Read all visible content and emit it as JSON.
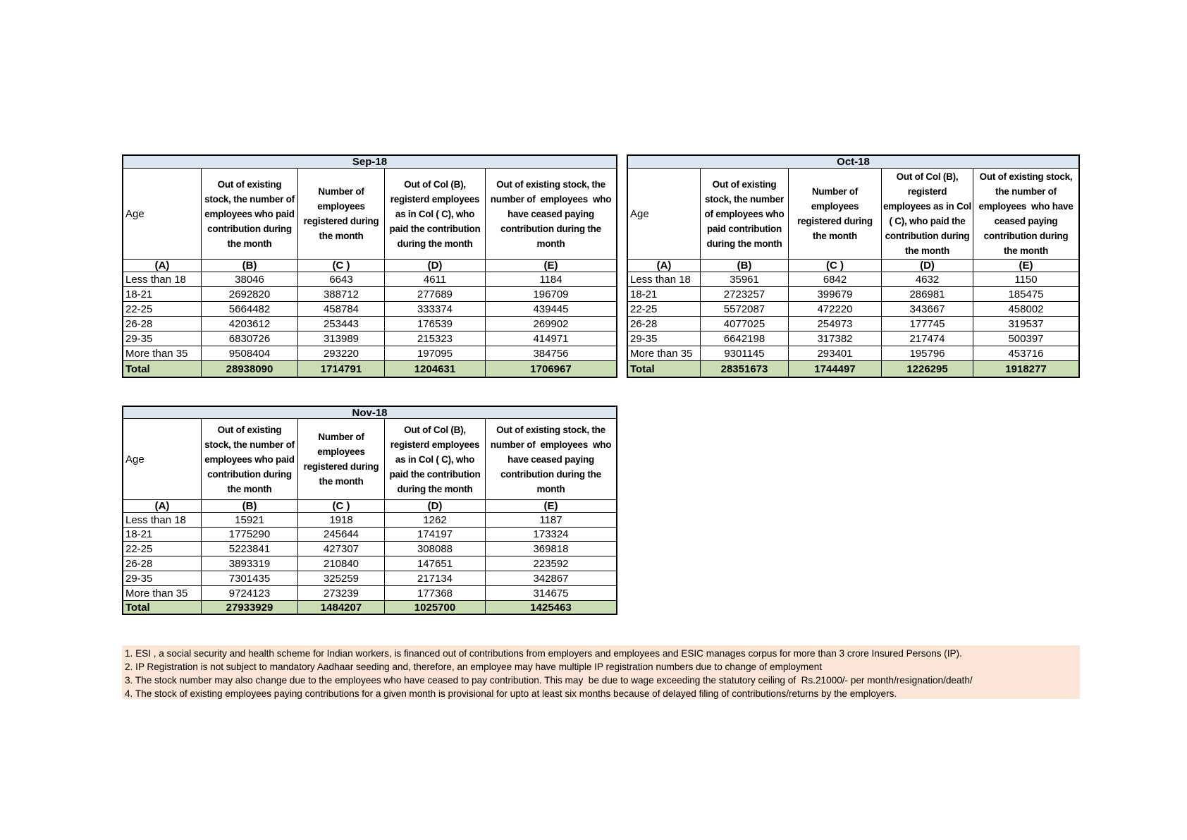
{
  "colors": {
    "month_header_bg": "#DCE6F1",
    "total_row_bg": "#C9DCB2",
    "footnote_bg": "#FBE5D6",
    "border": "#000000"
  },
  "column_letters": [
    "(A)",
    "(B)",
    "(C )",
    "(D)",
    "(E)"
  ],
  "tables": [
    {
      "id": "sep",
      "month": "Sep-18",
      "col_headers": [
        "Age",
        "Out of existing\nstock, the number of\nemployees who paid\ncontribution during\nthe month",
        "Number of\nemployees\nregistered during\nthe month",
        "Out of Col (B),\nregisterd employees\nas in Col ( C), who\npaid the contribution\nduring the month",
        "Out of existing stock, the\nnumber of  employees  who\nhave ceased paying\ncontribution during the\nmonth"
      ],
      "rows": [
        {
          "age": "Less than 18",
          "values": [
            "38046",
            "6643",
            "4611",
            "1184"
          ]
        },
        {
          "age": "18-21",
          "values": [
            "2692820",
            "388712",
            "277689",
            "196709"
          ]
        },
        {
          "age": "22-25",
          "values": [
            "5664482",
            "458784",
            "333374",
            "439445"
          ]
        },
        {
          "age": "26-28",
          "values": [
            "4203612",
            "253443",
            "176539",
            "269902"
          ]
        },
        {
          "age": "29-35",
          "values": [
            "6830726",
            "313989",
            "215323",
            "414971"
          ]
        },
        {
          "age": "More than 35",
          "values": [
            "9508404",
            "293220",
            "197095",
            "384756"
          ]
        }
      ],
      "total": {
        "label": "Total",
        "values": [
          "28938090",
          "1714791",
          "1204631",
          "1706967"
        ]
      }
    },
    {
      "id": "oct",
      "month": "Oct-18",
      "col_headers": [
        "Age",
        "Out of existing\nstock, the number\nof employees who\npaid contribution\nduring the month",
        "Number of\nemployees\nregistered during\nthe month",
        "Out of Col (B),\nregisterd\nemployees as in Col\n( C), who paid the\ncontribution during\nthe month",
        "Out of existing stock,\nthe number of\nemployees  who have\nceased paying\ncontribution during\nthe month"
      ],
      "rows": [
        {
          "age": "Less than 18",
          "values": [
            "35961",
            "6842",
            "4632",
            "1150"
          ]
        },
        {
          "age": "18-21",
          "values": [
            "2723257",
            "399679",
            "286981",
            "185475"
          ]
        },
        {
          "age": "22-25",
          "values": [
            "5572087",
            "472220",
            "343667",
            "458002"
          ]
        },
        {
          "age": "26-28",
          "values": [
            "4077025",
            "254973",
            "177745",
            "319537"
          ]
        },
        {
          "age": "29-35",
          "values": [
            "6642198",
            "317382",
            "217474",
            "500397"
          ]
        },
        {
          "age": "More than 35",
          "values": [
            "9301145",
            "293401",
            "195796",
            "453716"
          ]
        }
      ],
      "total": {
        "label": "Total",
        "values": [
          "28351673",
          "1744497",
          "1226295",
          "1918277"
        ]
      }
    },
    {
      "id": "nov",
      "month": "Nov-18",
      "col_headers": [
        "Age",
        "Out of existing\nstock, the number of\nemployees who paid\ncontribution during\nthe month",
        "Number of\nemployees\nregistered during\nthe month",
        "Out of Col (B),\nregisterd employees\nas in Col ( C), who\npaid the contribution\nduring the month",
        "Out of existing stock, the\nnumber of  employees  who\nhave ceased paying\ncontribution during the\nmonth"
      ],
      "rows": [
        {
          "age": "Less than 18",
          "values": [
            "15921",
            "1918",
            "1262",
            "1187"
          ]
        },
        {
          "age": "18-21",
          "values": [
            "1775290",
            "245644",
            "174197",
            "173324"
          ]
        },
        {
          "age": "22-25",
          "values": [
            "5223841",
            "427307",
            "308088",
            "369818"
          ]
        },
        {
          "age": "26-28",
          "values": [
            "3893319",
            "210840",
            "147651",
            "223592"
          ]
        },
        {
          "age": "29-35",
          "values": [
            "7301435",
            "325259",
            "217134",
            "342867"
          ]
        },
        {
          "age": "More than 35",
          "values": [
            "9724123",
            "273239",
            "177368",
            "314675"
          ]
        }
      ],
      "total": {
        "label": "Total",
        "values": [
          "27933929",
          "1484207",
          "1025700",
          "1425463"
        ]
      }
    }
  ],
  "footnotes": [
    "1. ESI , a social security and health scheme for Indian workers, is financed out of contributions from employers and employees and ESIC manages corpus for more than 3 crore Insured Persons (IP).",
    "2. IP Registration is not subject to mandatory Aadhaar seeding and, therefore, an employee may have multiple IP registration numbers due to change of employment",
    "3. The stock number may also change due to the employees who have ceased to pay contribution. This may  be due to wage exceeding the statutory ceiling of  Rs.21000/- per month/resignation/death/",
    "4. The stock of existing employees paying contributions for a given month is provisional for upto at least six months because of delayed filing of contributions/returns by the employers."
  ]
}
